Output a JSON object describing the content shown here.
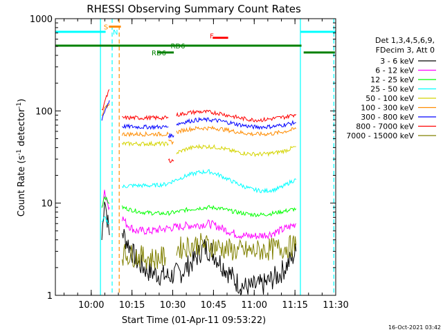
{
  "chart_data": {
    "type": "line",
    "title": "RHESSI Observing Summary Count Rates",
    "xlabel": "Start Time (01-Apr-11 09:53:22)",
    "ylabel_main": "Count Rate (s",
    "ylabel_sup1": "-1",
    "ylabel_mid": " detector",
    "ylabel_sup2": "-1",
    "ylabel_end": ")",
    "y_scale": "log",
    "ylim": [
      1,
      1000
    ],
    "xlim_minutes": [
      -6.6,
      96.6
    ],
    "x_start": "09:53:22",
    "x_ticks": [
      {
        "m": 6.6,
        "label": "10:00"
      },
      {
        "m": 21.6,
        "label": "10:15"
      },
      {
        "m": 36.6,
        "label": "10:30"
      },
      {
        "m": 51.6,
        "label": "10:45"
      },
      {
        "m": 66.6,
        "label": "11:00"
      },
      {
        "m": 81.6,
        "label": "11:15"
      },
      {
        "m": 96.6,
        "label": "11:30"
      }
    ],
    "y_ticks": [
      {
        "v": 1,
        "label": "1"
      },
      {
        "v": 10,
        "label": "10"
      },
      {
        "v": 100,
        "label": "100"
      },
      {
        "v": 1000,
        "label": "1000"
      }
    ],
    "legend_title": [
      "Det 1,3,4,5,6,9,",
      "FDecim 3, Att 0"
    ],
    "legend_position": "right",
    "series": [
      {
        "name": "3 - 6 keV",
        "color": "#000000",
        "segments": [
          [
            [
              10.5,
              4
            ],
            [
              11.5,
              12
            ],
            [
              12.2,
              8
            ],
            [
              13.3,
              4.5
            ]
          ],
          [
            [
              18,
              5
            ],
            [
              19,
              4.2
            ],
            [
              20.5,
              3.5
            ],
            [
              22,
              2.8
            ],
            [
              24,
              2.2
            ],
            [
              26,
              2
            ],
            [
              28,
              1.8
            ],
            [
              31,
              1.7
            ],
            [
              35,
              1.6
            ],
            [
              40,
              1.8
            ],
            [
              45,
              2.5
            ],
            [
              48,
              3.3
            ],
            [
              51,
              3
            ],
            [
              54,
              2.3
            ],
            [
              57,
              1.8
            ],
            [
              60,
              1.4
            ],
            [
              64,
              1.2
            ],
            [
              70,
              1.3
            ],
            [
              76,
              1.7
            ],
            [
              80,
              2.4
            ],
            [
              82,
              3
            ]
          ]
        ]
      },
      {
        "name": "6 - 12 keV",
        "color": "#ff00ff",
        "segments": [
          [
            [
              10.5,
              9
            ],
            [
              11.5,
              14
            ],
            [
              12.2,
              11
            ],
            [
              13.3,
              9
            ]
          ],
          [
            [
              18,
              7
            ],
            [
              19.5,
              6
            ],
            [
              21,
              5.5
            ],
            [
              23,
              5
            ],
            [
              26,
              5
            ],
            [
              29,
              5
            ],
            [
              34,
              5.3
            ],
            [
              38,
              5.5
            ],
            [
              42,
              5.7
            ],
            [
              46,
              5.8
            ],
            [
              50,
              6
            ],
            [
              53,
              5.6
            ],
            [
              57,
              5
            ],
            [
              60,
              4.6
            ],
            [
              64,
              4.4
            ],
            [
              68,
              4.4
            ],
            [
              72,
              4.6
            ],
            [
              76,
              5
            ],
            [
              80,
              5.6
            ],
            [
              82,
              6
            ]
          ]
        ]
      },
      {
        "name": "12 - 25 keV",
        "color": "#00ff00",
        "segments": [
          [
            [
              10.5,
              9
            ],
            [
              11.5,
              12
            ],
            [
              12.2,
              11
            ],
            [
              13.3,
              10
            ]
          ],
          [
            [
              18,
              9
            ],
            [
              21,
              8.5
            ],
            [
              25,
              8
            ],
            [
              29,
              7.8
            ],
            [
              34,
              7.7
            ],
            [
              38,
              8
            ],
            [
              42,
              8.5
            ],
            [
              46,
              8.8
            ],
            [
              50,
              9
            ],
            [
              54,
              8.8
            ],
            [
              58,
              8.2
            ],
            [
              62,
              7.8
            ],
            [
              66,
              7.5
            ],
            [
              70,
              7.5
            ],
            [
              74,
              7.8
            ],
            [
              78,
              8.2
            ],
            [
              82,
              8.7
            ]
          ]
        ]
      },
      {
        "name": "25 - 50 keV",
        "color": "#00ffff",
        "segments": [
          [
            [
              10.5,
              6
            ],
            [
              11.5,
              7
            ],
            [
              12.2,
              6.5
            ],
            [
              13.3,
              6
            ]
          ],
          [
            [
              18,
              15
            ],
            [
              21,
              15.5
            ],
            [
              25,
              15.5
            ],
            [
              29,
              15.5
            ],
            [
              34,
              16
            ],
            [
              38,
              18
            ],
            [
              42,
              20
            ],
            [
              46,
              21.5
            ],
            [
              50,
              22
            ],
            [
              54,
              20
            ],
            [
              58,
              17.5
            ],
            [
              62,
              15.5
            ],
            [
              66,
              14
            ],
            [
              70,
              13.5
            ],
            [
              74,
              14
            ],
            [
              77,
              15
            ],
            [
              80,
              17
            ],
            [
              82,
              18
            ]
          ]
        ]
      },
      {
        "name": "50 - 100 keV",
        "color": "#d4d400",
        "segments": [
          [
            [
              18,
              44
            ],
            [
              21,
              44
            ],
            [
              25,
              44
            ],
            [
              29,
              44
            ],
            [
              32,
              44
            ],
            [
              35,
              44
            ]
          ],
          [
            [
              38,
              35
            ],
            [
              42,
              39
            ],
            [
              46,
              41
            ],
            [
              50,
              41
            ],
            [
              54,
              40
            ],
            [
              58,
              37
            ],
            [
              62,
              35
            ],
            [
              66,
              34
            ],
            [
              70,
              34
            ],
            [
              74,
              35
            ],
            [
              78,
              37
            ],
            [
              81,
              40
            ],
            [
              82,
              41
            ]
          ]
        ]
      },
      {
        "name": "100 - 300 keV",
        "color": "#ff8c00",
        "segments": [
          [
            [
              10.5,
              85
            ],
            [
              11.5,
              105
            ],
            [
              12.2,
              110
            ],
            [
              13.3,
              120
            ]
          ],
          [
            [
              18,
              56
            ],
            [
              24,
              56
            ],
            [
              30,
              56
            ],
            [
              35,
              56
            ]
          ],
          [
            [
              35,
              46
            ],
            [
              37,
              46
            ]
          ],
          [
            [
              38,
              59
            ],
            [
              42,
              63
            ],
            [
              46,
              65
            ],
            [
              50,
              65
            ],
            [
              54,
              64
            ],
            [
              58,
              61
            ],
            [
              62,
              58
            ],
            [
              66,
              56
            ],
            [
              70,
              56
            ],
            [
              74,
              57
            ],
            [
              78,
              60
            ],
            [
              82,
              64
            ]
          ]
        ]
      },
      {
        "name": "300 - 800 keV",
        "color": "#0000ff",
        "segments": [
          [
            [
              10.5,
              80
            ],
            [
              11.5,
              100
            ],
            [
              12.2,
              110
            ],
            [
              13.3,
              130
            ]
          ],
          [
            [
              18,
              68
            ],
            [
              24,
              67
            ],
            [
              30,
              67
            ],
            [
              35,
              67
            ]
          ],
          [
            [
              35,
              54
            ],
            [
              37,
              54
            ]
          ],
          [
            [
              38,
              72
            ],
            [
              42,
              77
            ],
            [
              46,
              80
            ],
            [
              50,
              80
            ],
            [
              54,
              78
            ],
            [
              58,
              74
            ],
            [
              62,
              70
            ],
            [
              66,
              67
            ],
            [
              70,
              67
            ],
            [
              74,
              68
            ],
            [
              78,
              71
            ],
            [
              82,
              75
            ]
          ]
        ]
      },
      {
        "name": "800 - 7000 keV",
        "color": "#ff0000",
        "segments": [
          [
            [
              10.5,
              100
            ],
            [
              11.5,
              125
            ],
            [
              12.2,
              140
            ],
            [
              13.3,
              170
            ]
          ],
          [
            [
              18,
              84
            ],
            [
              24,
              84
            ],
            [
              30,
              84
            ],
            [
              35,
              84
            ]
          ],
          [
            [
              35,
              29
            ],
            [
              37,
              29
            ]
          ],
          [
            [
              38,
              90
            ],
            [
              42,
              95
            ],
            [
              46,
              98
            ],
            [
              50,
              97
            ],
            [
              54,
              94
            ],
            [
              58,
              88
            ],
            [
              62,
              83
            ],
            [
              66,
              80
            ],
            [
              70,
              80
            ],
            [
              74,
              83
            ],
            [
              78,
              86
            ],
            [
              82,
              92
            ]
          ]
        ]
      },
      {
        "name": "7000 - 15000 keV",
        "color": "#808000",
        "segments": [
          [
            [
              18,
              2.8
            ],
            [
              22,
              2.7
            ],
            [
              26,
              2.6
            ],
            [
              30,
              2.5
            ],
            [
              34,
              2.6
            ]
          ],
          [
            [
              38,
              3.2
            ],
            [
              42,
              3.4
            ],
            [
              46,
              3.6
            ],
            [
              50,
              3.5
            ],
            [
              54,
              3.3
            ],
            [
              58,
              3.1
            ],
            [
              62,
              3
            ],
            [
              66,
              3
            ],
            [
              70,
              3.1
            ],
            [
              74,
              3.2
            ],
            [
              78,
              3.3
            ],
            [
              82,
              3.5
            ]
          ]
        ]
      }
    ],
    "vlines": [
      {
        "m": 14.3,
        "color": "#00ffff",
        "style": "dashed"
      },
      {
        "m": 95.9,
        "color": "#00ffff",
        "style": "dashed"
      },
      {
        "m": 16.9,
        "color": "#ff8c00",
        "style": "dashed"
      }
    ],
    "annotations": [
      {
        "text": "S",
        "color": "#ff8c00",
        "m": 12.0,
        "v": 820,
        "bar": [
          13.1,
          17.5
        ]
      },
      {
        "text": "N",
        "color": "#00ffff",
        "m": 15.5,
        "v": 720,
        "bar": [
          -6.6,
          11.9
        ]
      },
      {
        "text": "RD6",
        "color": "#008000",
        "m": 31.5,
        "v": 430,
        "bar": [
          31.0,
          37.0
        ]
      },
      {
        "text": "RD6",
        "color": "#008000",
        "m": 38.5,
        "v": 510,
        "bar": [
          -6.6,
          84.0
        ]
      },
      {
        "text": "F",
        "color": "#ff0000",
        "m": 51.0,
        "v": 620,
        "bar": [
          51.3,
          57.0
        ]
      }
    ],
    "n_upper": {
      "color": "#00ffff",
      "bar": [
        83.6,
        96.6
      ],
      "v": 720
    },
    "rd6_right": {
      "color": "#008000",
      "bar": [
        84.8,
        96.3
      ],
      "v": 430
    },
    "cyan_solid_lines": [
      10.0,
      83.6
    ],
    "footer_date": "16-Oct-2021 03:42"
  }
}
